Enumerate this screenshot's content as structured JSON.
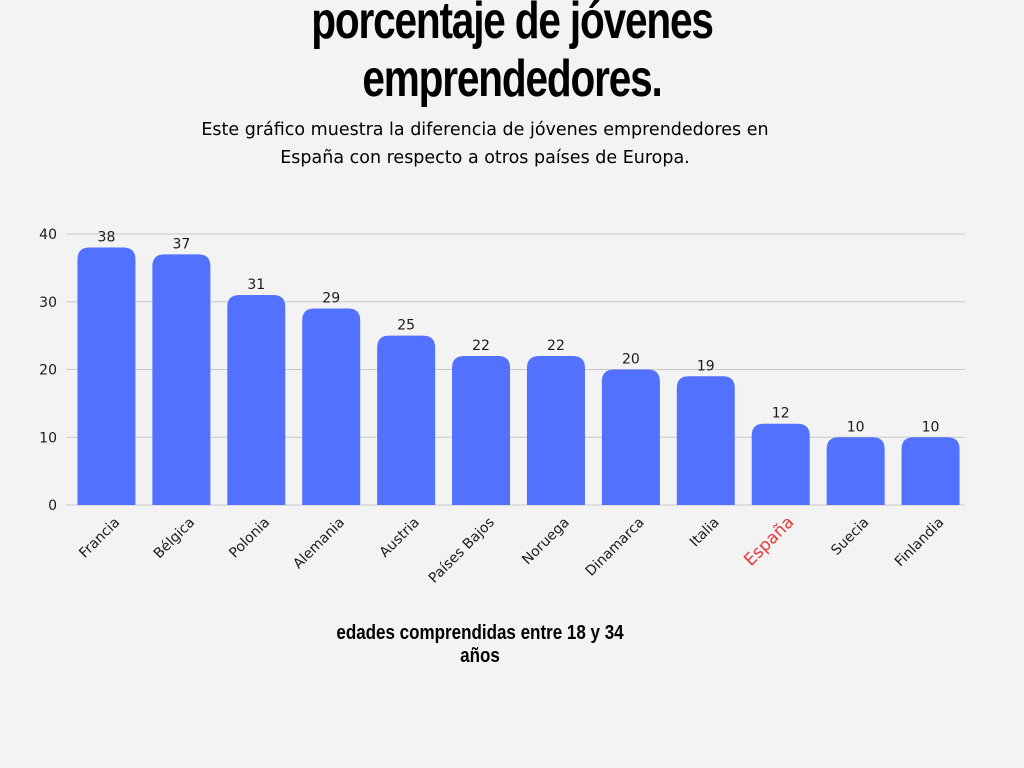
{
  "header": {
    "title_lines": [
      "porcentaje de jóvenes",
      "emprendedores."
    ],
    "subtitle_lines": [
      "Este gráfico muestra la diferencia de jóvenes emprendedores  en",
      "España con respecto a otros países de Europa."
    ]
  },
  "footnote": "edades comprendidas entre 18 y 34 años",
  "colors": {
    "bar": "#5271ff",
    "highlight_label": "#e8383b",
    "grid": "#c8c8c8",
    "text": "#1a1a1a"
  },
  "chart_data": {
    "type": "bar",
    "categories": [
      "Francia",
      "Bélgica",
      "Polonia",
      "Alemania",
      "Austria",
      "Países Bajos",
      "Noruega",
      "Dinamarca",
      "Italia",
      "España",
      "Suecia",
      "Finlandia"
    ],
    "values": [
      38,
      37,
      31,
      29,
      25,
      22,
      22,
      20,
      19,
      12,
      10,
      10
    ],
    "highlighted_category": "España",
    "yticks": [
      0,
      10,
      20,
      30,
      40
    ],
    "ylim": [
      0,
      40
    ],
    "grid": true,
    "data_labels": true
  }
}
